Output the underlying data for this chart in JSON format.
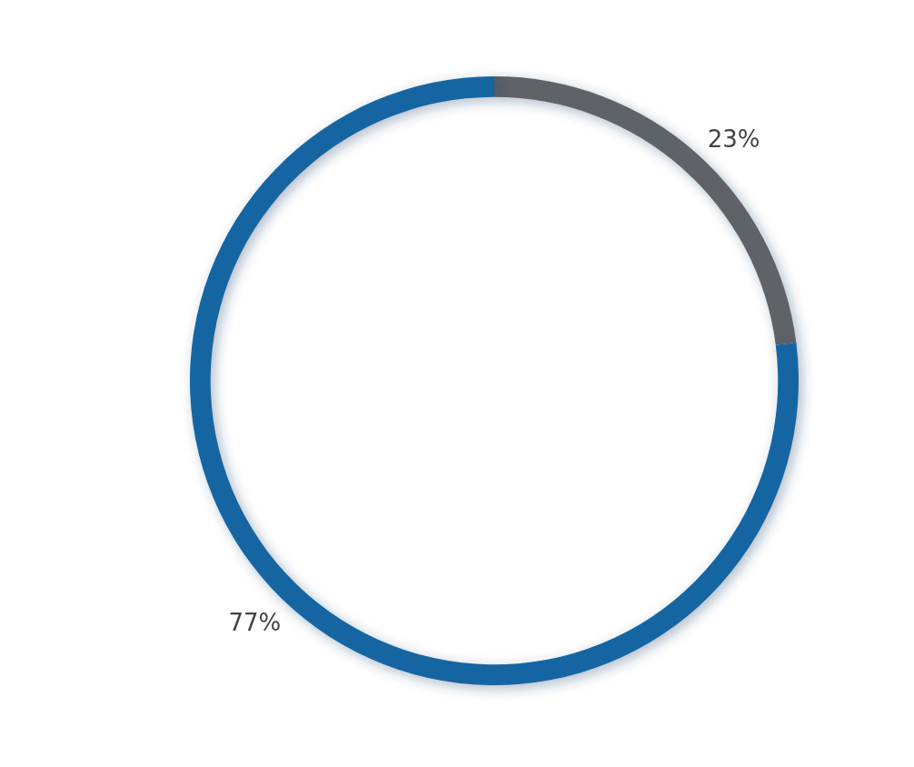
{
  "chart_data": {
    "type": "donut",
    "categories": [
      null,
      null
    ],
    "values": [
      23,
      77
    ],
    "colors": [
      "#5f6368",
      "#1565a3"
    ],
    "value_labels": [
      "23%",
      "77%"
    ]
  }
}
